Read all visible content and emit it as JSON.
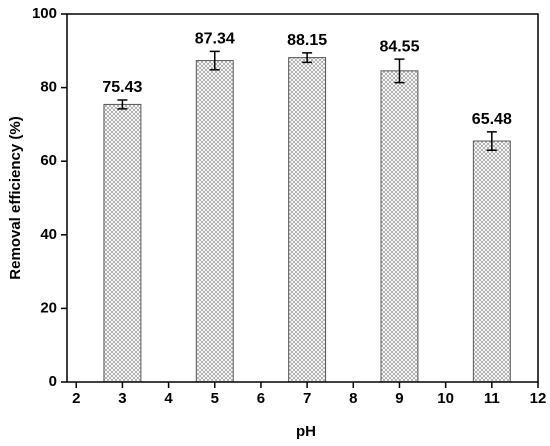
{
  "chart_data": {
    "type": "bar",
    "xlabel": "pH",
    "ylabel": "Removal efficiency (%)",
    "x": [
      3,
      5,
      7,
      9,
      11
    ],
    "values": [
      75.43,
      87.34,
      88.15,
      84.55,
      65.48
    ],
    "errors": [
      1.2,
      2.5,
      1.3,
      3.2,
      2.5
    ],
    "xlim": [
      1.8,
      12
    ],
    "xticks": [
      2,
      3,
      4,
      5,
      6,
      7,
      8,
      9,
      10,
      11,
      12
    ],
    "ylim": [
      0,
      100
    ],
    "yticks": [
      0,
      20,
      40,
      60,
      80,
      100
    ],
    "color": "#555555"
  }
}
